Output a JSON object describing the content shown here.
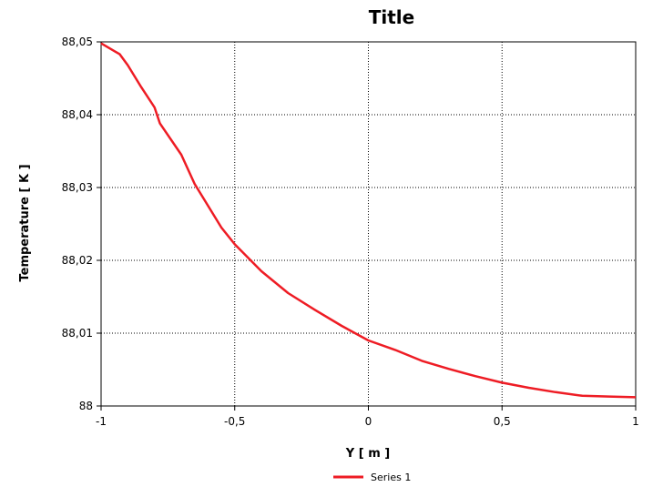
{
  "chart_data": {
    "type": "line",
    "title": "Title",
    "xlabel": "Y [ m ]",
    "ylabel": "Temperature [ K ]",
    "xlim": [
      -1,
      1
    ],
    "ylim": [
      88,
      88.05
    ],
    "x_ticks": [
      -1,
      -0.5,
      0,
      0.5,
      1
    ],
    "y_ticks": [
      88,
      88.01,
      88.02,
      88.03,
      88.04,
      88.05
    ],
    "x_tick_labels": [
      "-1",
      "-0,5",
      "0",
      "0,5",
      "1"
    ],
    "y_tick_labels": [
      "88",
      "88,01",
      "88,02",
      "88,03",
      "88,04",
      "88,05"
    ],
    "grid": true,
    "legend_position": "bottom-center",
    "series": [
      {
        "name": "Series 1",
        "color": "#ee1c24",
        "x": [
          -1,
          -0.93,
          -0.9,
          -0.85,
          -0.8,
          -0.78,
          -0.7,
          -0.65,
          -0.6,
          -0.55,
          -0.5,
          -0.4,
          -0.3,
          -0.2,
          -0.1,
          0,
          0.1,
          0.2,
          0.3,
          0.4,
          0.5,
          0.6,
          0.7,
          0.8,
          0.9,
          1
        ],
        "y": [
          88.0498,
          88.0483,
          88.0468,
          88.0438,
          88.041,
          88.0388,
          88.0345,
          88.0305,
          88.0275,
          88.0245,
          88.0222,
          88.0185,
          88.0155,
          88.0132,
          88.011,
          88.009,
          88.0077,
          88.0062,
          88.0051,
          88.0041,
          88.0032,
          88.0025,
          88.0019,
          88.0014,
          88.0013,
          88.0012
        ]
      }
    ]
  }
}
